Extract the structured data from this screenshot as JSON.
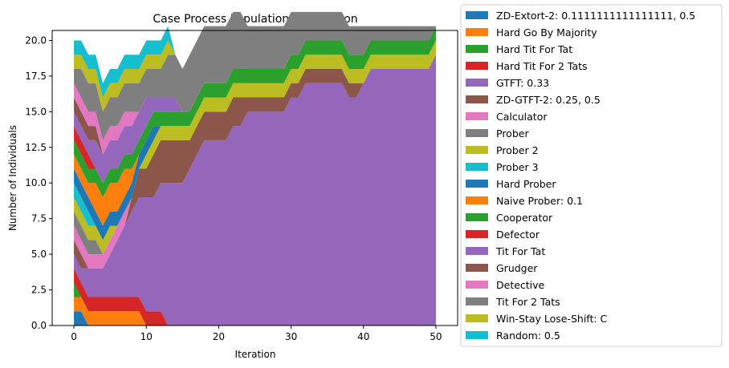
{
  "chart_data": {
    "type": "area",
    "title": "Case Process Population by Iteration",
    "xlabel": "Iteration",
    "ylabel": "Number of Individuals",
    "xlim": [
      -3,
      53
    ],
    "ylim": [
      0,
      20.7
    ],
    "xticks": [
      0,
      10,
      20,
      30,
      40,
      50
    ],
    "yticks": [
      "0.0",
      "2.5",
      "5.0",
      "7.5",
      "10.0",
      "12.5",
      "15.0",
      "17.5",
      "20.0"
    ],
    "legend_position": "outside-right",
    "x": [
      0,
      1,
      2,
      3,
      4,
      5,
      6,
      7,
      8,
      9,
      10,
      11,
      12,
      13,
      14,
      15,
      16,
      17,
      18,
      19,
      20,
      21,
      22,
      23,
      24,
      25,
      26,
      27,
      28,
      29,
      30,
      31,
      32,
      33,
      34,
      35,
      36,
      37,
      38,
      39,
      40,
      41,
      42,
      43,
      44,
      45,
      46,
      47,
      48,
      49,
      50
    ],
    "series": [
      {
        "name": "ZD-Extort-2: 0.1111111111111111, 0.5",
        "color": "#1f77b4",
        "values": [
          1,
          1,
          0,
          0,
          0,
          0,
          0,
          0,
          0,
          0,
          0,
          0,
          0,
          0,
          0,
          0,
          0,
          0,
          0,
          0,
          0,
          0,
          0,
          0,
          0,
          0,
          0,
          0,
          0,
          0,
          0,
          0,
          0,
          0,
          0,
          0,
          0,
          0,
          0,
          0,
          0,
          0,
          0,
          0,
          0,
          0,
          0,
          0,
          0,
          0,
          0
        ]
      },
      {
        "name": "Hard Go By Majority",
        "color": "#ff7f0e",
        "values": [
          1,
          1,
          1,
          1,
          1,
          1,
          1,
          1,
          1,
          1,
          0,
          0,
          0,
          0,
          0,
          0,
          0,
          0,
          0,
          0,
          0,
          0,
          0,
          0,
          0,
          0,
          0,
          0,
          0,
          0,
          0,
          0,
          0,
          0,
          0,
          0,
          0,
          0,
          0,
          0,
          0,
          0,
          0,
          0,
          0,
          0,
          0,
          0,
          0,
          0,
          0
        ]
      },
      {
        "name": "Hard Tit For Tat",
        "color": "#2ca02c",
        "values": [
          1,
          0,
          0,
          0,
          0,
          0,
          0,
          0,
          0,
          0,
          0,
          0,
          0,
          0,
          0,
          0,
          0,
          0,
          0,
          0,
          0,
          0,
          0,
          0,
          0,
          0,
          0,
          0,
          0,
          0,
          0,
          0,
          0,
          0,
          0,
          0,
          0,
          0,
          0,
          0,
          0,
          0,
          0,
          0,
          0,
          0,
          0,
          0,
          0,
          0,
          0
        ]
      },
      {
        "name": "Hard Tit For 2 Tats",
        "color": "#d62728",
        "values": [
          1,
          1,
          1,
          1,
          1,
          1,
          1,
          1,
          1,
          1,
          1,
          1,
          1,
          0,
          0,
          0,
          0,
          0,
          0,
          0,
          0,
          0,
          0,
          0,
          0,
          0,
          0,
          0,
          0,
          0,
          0,
          0,
          0,
          0,
          0,
          0,
          0,
          0,
          0,
          0,
          0,
          0,
          0,
          0,
          0,
          0,
          0,
          0,
          0,
          0,
          0
        ]
      },
      {
        "name": "GTFT: 0.33",
        "color": "#9467bd",
        "values": [
          1,
          1,
          2,
          2,
          2,
          3,
          4,
          5,
          6,
          7,
          8,
          8,
          9,
          10,
          10,
          10,
          11,
          12,
          13,
          13,
          13,
          13,
          14,
          14,
          15,
          15,
          15,
          15,
          15,
          15,
          16,
          16,
          17,
          17,
          17,
          17,
          17,
          17,
          16,
          16,
          17,
          18,
          18,
          18,
          18,
          18,
          18,
          18,
          18,
          18,
          19
        ]
      },
      {
        "name": "ZD-GTFT-2: 0.25, 0.5",
        "color": "#8c564b",
        "values": [
          1,
          1,
          0,
          0,
          0,
          0,
          0,
          0,
          1,
          2,
          2,
          3,
          3,
          3,
          3,
          3,
          2,
          2,
          2,
          2,
          2,
          2,
          2,
          2,
          1,
          1,
          1,
          1,
          1,
          1,
          1,
          1,
          1,
          1,
          1,
          1,
          1,
          1,
          1,
          1,
          0,
          0,
          0,
          0,
          0,
          0,
          0,
          0,
          0,
          0,
          0
        ]
      },
      {
        "name": "Calculator",
        "color": "#e377c2",
        "values": [
          1,
          1,
          1,
          1,
          1,
          1,
          1,
          1,
          0,
          0,
          0,
          0,
          0,
          0,
          0,
          0,
          0,
          0,
          0,
          0,
          0,
          0,
          0,
          0,
          0,
          0,
          0,
          0,
          0,
          0,
          0,
          0,
          0,
          0,
          0,
          0,
          0,
          0,
          0,
          0,
          0,
          0,
          0,
          0,
          0,
          0,
          0,
          0,
          0,
          0,
          0
        ]
      },
      {
        "name": "Prober",
        "color": "#7f7f7f",
        "values": [
          1,
          1,
          1,
          1,
          0,
          0,
          0,
          0,
          0,
          0,
          0,
          0,
          0,
          0,
          0,
          0,
          0,
          0,
          0,
          0,
          0,
          0,
          0,
          0,
          0,
          0,
          0,
          0,
          0,
          0,
          0,
          0,
          0,
          0,
          0,
          0,
          0,
          0,
          0,
          0,
          0,
          0,
          0,
          0,
          0,
          0,
          0,
          0,
          0,
          0,
          0
        ]
      },
      {
        "name": "Prober 2",
        "color": "#bcbd22",
        "values": [
          1,
          1,
          1,
          1,
          1,
          1,
          0,
          0,
          0,
          0,
          1,
          1,
          1,
          1,
          1,
          1,
          1,
          1,
          1,
          1,
          1,
          1,
          1,
          1,
          1,
          1,
          1,
          1,
          1,
          1,
          1,
          1,
          1,
          1,
          1,
          1,
          1,
          1,
          1,
          1,
          1,
          1,
          1,
          1,
          1,
          1,
          1,
          1,
          1,
          1,
          1
        ]
      },
      {
        "name": "Prober 3",
        "color": "#17becf",
        "values": [
          1,
          1,
          1,
          0,
          0,
          0,
          0,
          0,
          0,
          0,
          0,
          0,
          0,
          0,
          0,
          0,
          0,
          0,
          0,
          0,
          0,
          0,
          0,
          0,
          0,
          0,
          0,
          0,
          0,
          0,
          0,
          0,
          0,
          0,
          0,
          0,
          0,
          0,
          0,
          0,
          0,
          0,
          0,
          0,
          0,
          0,
          0,
          0,
          0,
          0,
          0
        ]
      },
      {
        "name": "Hard Prober",
        "color": "#1f77b4",
        "values": [
          1,
          1,
          1,
          1,
          1,
          1,
          1,
          1,
          1,
          1,
          1,
          1,
          0,
          0,
          0,
          0,
          0,
          0,
          0,
          0,
          0,
          0,
          0,
          0,
          0,
          0,
          0,
          0,
          0,
          0,
          0,
          0,
          0,
          0,
          0,
          0,
          0,
          0,
          0,
          0,
          0,
          0,
          0,
          0,
          0,
          0,
          0,
          0,
          0,
          0,
          0
        ]
      },
      {
        "name": "Naive Prober: 0.1",
        "color": "#ff7f0e",
        "values": [
          1,
          1,
          1,
          2,
          2,
          2,
          2,
          2,
          1,
          0,
          0,
          0,
          0,
          0,
          0,
          0,
          0,
          0,
          0,
          0,
          0,
          0,
          0,
          0,
          0,
          0,
          0,
          0,
          0,
          0,
          0,
          0,
          0,
          0,
          0,
          0,
          0,
          0,
          0,
          0,
          0,
          0,
          0,
          0,
          0,
          0,
          0,
          0,
          0,
          0,
          0
        ]
      },
      {
        "name": "Cooperator",
        "color": "#2ca02c",
        "values": [
          1,
          1,
          1,
          1,
          1,
          1,
          1,
          1,
          1,
          1,
          1,
          1,
          1,
          1,
          1,
          1,
          1,
          1,
          1,
          1,
          1,
          1,
          1,
          1,
          1,
          1,
          1,
          1,
          1,
          1,
          1,
          1,
          1,
          1,
          1,
          1,
          1,
          1,
          1,
          1,
          1,
          1,
          1,
          1,
          1,
          1,
          1,
          1,
          1,
          1,
          1
        ]
      },
      {
        "name": "Defector",
        "color": "#d62728",
        "values": [
          1,
          1,
          1,
          0,
          0,
          0,
          0,
          0,
          0,
          0,
          0,
          0,
          0,
          0,
          0,
          0,
          0,
          0,
          0,
          0,
          0,
          0,
          0,
          0,
          0,
          0,
          0,
          0,
          0,
          0,
          0,
          0,
          0,
          0,
          0,
          0,
          0,
          0,
          0,
          0,
          0,
          0,
          0,
          0,
          0,
          0,
          0,
          0,
          0,
          0,
          0
        ]
      },
      {
        "name": "Tit For Tat",
        "color": "#9467bd",
        "values": [
          1,
          1,
          1,
          2,
          2,
          2,
          2,
          2,
          2,
          2,
          2,
          1,
          1,
          1,
          1,
          0,
          0,
          0,
          0,
          0,
          0,
          0,
          0,
          0,
          0,
          0,
          0,
          0,
          0,
          0,
          0,
          0,
          0,
          0,
          0,
          0,
          0,
          0,
          0,
          0,
          0,
          0,
          0,
          0,
          0,
          0,
          0,
          0,
          0,
          0,
          0
        ]
      },
      {
        "name": "Grudger",
        "color": "#8c564b",
        "values": [
          1,
          1,
          1,
          1,
          0,
          0,
          0,
          0,
          0,
          0,
          0,
          0,
          0,
          0,
          0,
          0,
          0,
          0,
          0,
          0,
          0,
          0,
          0,
          0,
          0,
          0,
          0,
          0,
          0,
          0,
          0,
          0,
          0,
          0,
          0,
          0,
          0,
          0,
          0,
          0,
          0,
          0,
          0,
          0,
          0,
          0,
          0,
          0,
          0,
          0,
          0
        ]
      },
      {
        "name": "Detective",
        "color": "#e377c2",
        "values": [
          1,
          1,
          1,
          1,
          1,
          1,
          1,
          1,
          1,
          0,
          0,
          0,
          0,
          0,
          0,
          0,
          0,
          0,
          0,
          0,
          0,
          0,
          0,
          0,
          0,
          0,
          0,
          0,
          0,
          0,
          0,
          0,
          0,
          0,
          0,
          0,
          0,
          0,
          0,
          0,
          0,
          0,
          0,
          0,
          0,
          0,
          0,
          0,
          0,
          0,
          0
        ]
      },
      {
        "name": "Tit For 2 Tats",
        "color": "#7f7f7f",
        "values": [
          1,
          2,
          2,
          2,
          2,
          2,
          2,
          2,
          2,
          2,
          2,
          2,
          2,
          3,
          3,
          3,
          4,
          4,
          4,
          4,
          4,
          4,
          4,
          4,
          3,
          3,
          3,
          3,
          3,
          3,
          3,
          3,
          2,
          2,
          2,
          2,
          2,
          2,
          2,
          2,
          2,
          1,
          1,
          1,
          1,
          1,
          1,
          1,
          1,
          1,
          0
        ]
      },
      {
        "name": "Win-Stay Lose-Shift: C",
        "color": "#bcbd22",
        "values": [
          1,
          1,
          1,
          1,
          1,
          1,
          1,
          1,
          1,
          1,
          1,
          1,
          1,
          1,
          0,
          0,
          0,
          0,
          0,
          0,
          0,
          0,
          0,
          0,
          0,
          0,
          0,
          0,
          0,
          0,
          0,
          0,
          0,
          0,
          0,
          0,
          0,
          0,
          0,
          0,
          0,
          0,
          0,
          0,
          0,
          0,
          0,
          0,
          0,
          0,
          0
        ]
      },
      {
        "name": "Random: 0.5",
        "color": "#17becf",
        "values": [
          1,
          1,
          1,
          1,
          1,
          1,
          1,
          1,
          1,
          1,
          1,
          1,
          1,
          1,
          0,
          0,
          0,
          0,
          0,
          0,
          0,
          0,
          0,
          0,
          0,
          0,
          0,
          0,
          0,
          0,
          0,
          0,
          0,
          0,
          0,
          0,
          0,
          0,
          0,
          0,
          0,
          0,
          0,
          0,
          0,
          0,
          0,
          0,
          0,
          0,
          0
        ]
      }
    ]
  }
}
